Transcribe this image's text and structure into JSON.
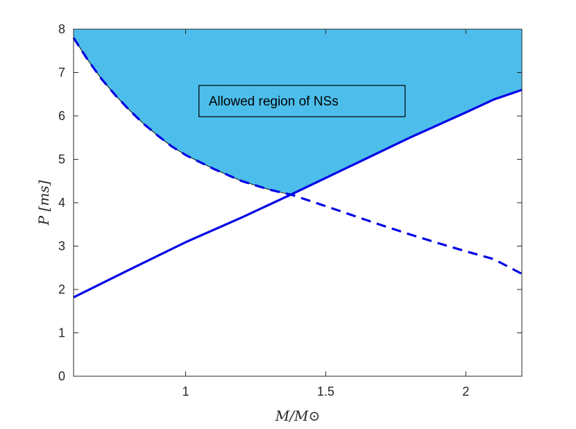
{
  "chart_data": {
    "type": "line",
    "xlabel": "M/M⊙",
    "ylabel": "P [ms]",
    "xlim": [
      0.6,
      2.2
    ],
    "ylim": [
      0,
      8
    ],
    "xticks": [
      1,
      1.5,
      2
    ],
    "yticks": [
      0,
      1,
      2,
      3,
      4,
      5,
      6,
      7,
      8
    ],
    "grid": false,
    "colors": {
      "line": "#0000e6",
      "fill": "#4dbeeb",
      "boundary": "#000000",
      "axes": "#262626"
    },
    "series": [
      {
        "style": "solid",
        "x": [
          0.6,
          0.8,
          1.0,
          1.2,
          1.38,
          1.6,
          1.8,
          2.0,
          2.1,
          2.2
        ],
        "y": [
          1.82,
          2.46,
          3.09,
          3.66,
          4.2,
          4.88,
          5.5,
          6.08,
          6.38,
          6.6
        ]
      },
      {
        "style": "dashed",
        "x": [
          0.6,
          0.65,
          0.7,
          0.75,
          0.8,
          0.85,
          0.9,
          0.95,
          1.0,
          1.1,
          1.2,
          1.3,
          1.38,
          1.5,
          1.6,
          1.7,
          1.8,
          1.9,
          2.0,
          2.1,
          2.2
        ],
        "y": [
          7.8,
          7.3,
          6.85,
          6.47,
          6.13,
          5.82,
          5.55,
          5.3,
          5.1,
          4.78,
          4.5,
          4.3,
          4.18,
          3.92,
          3.7,
          3.48,
          3.27,
          3.07,
          2.88,
          2.7,
          2.36
        ]
      }
    ],
    "annotations": [
      {
        "text": "Allowed region of NSs",
        "x": 1.05,
        "y": 6.35
      }
    ]
  }
}
